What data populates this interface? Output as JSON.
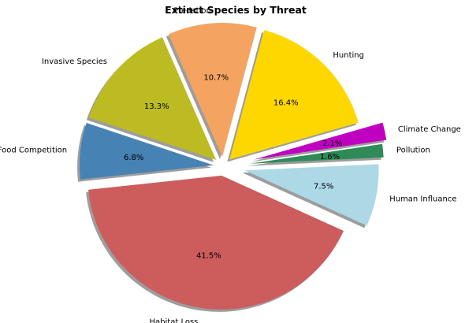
{
  "chart_data": {
    "type": "pie",
    "title": "Extinct Species by Threat",
    "slices": [
      {
        "label": "Hunting",
        "value": 16.4,
        "pct_label": "16.4%",
        "color": "#ffd700"
      },
      {
        "label": "Predation",
        "value": 10.7,
        "pct_label": "10.7%",
        "color": "#f4a460"
      },
      {
        "label": "Invasive Species",
        "value": 13.3,
        "pct_label": "13.3%",
        "color": "#bdbb22"
      },
      {
        "label": "Food Competition",
        "value": 6.8,
        "pct_label": "6.8%",
        "color": "#4682b4"
      },
      {
        "label": "Habitat Loss",
        "value": 41.5,
        "pct_label": "41.5%",
        "color": "#cd5c5c"
      },
      {
        "label": "Human Influance",
        "value": 7.5,
        "pct_label": "7.5%",
        "color": "#add8e6"
      },
      {
        "label": "Pollution",
        "value": 1.6,
        "pct_label": "1.6%",
        "color": "#2e8b57"
      },
      {
        "label": "Climate Change",
        "value": 2.1,
        "pct_label": "2.1%",
        "color": "#c000c0"
      }
    ],
    "shadow": true,
    "exploded": true
  }
}
